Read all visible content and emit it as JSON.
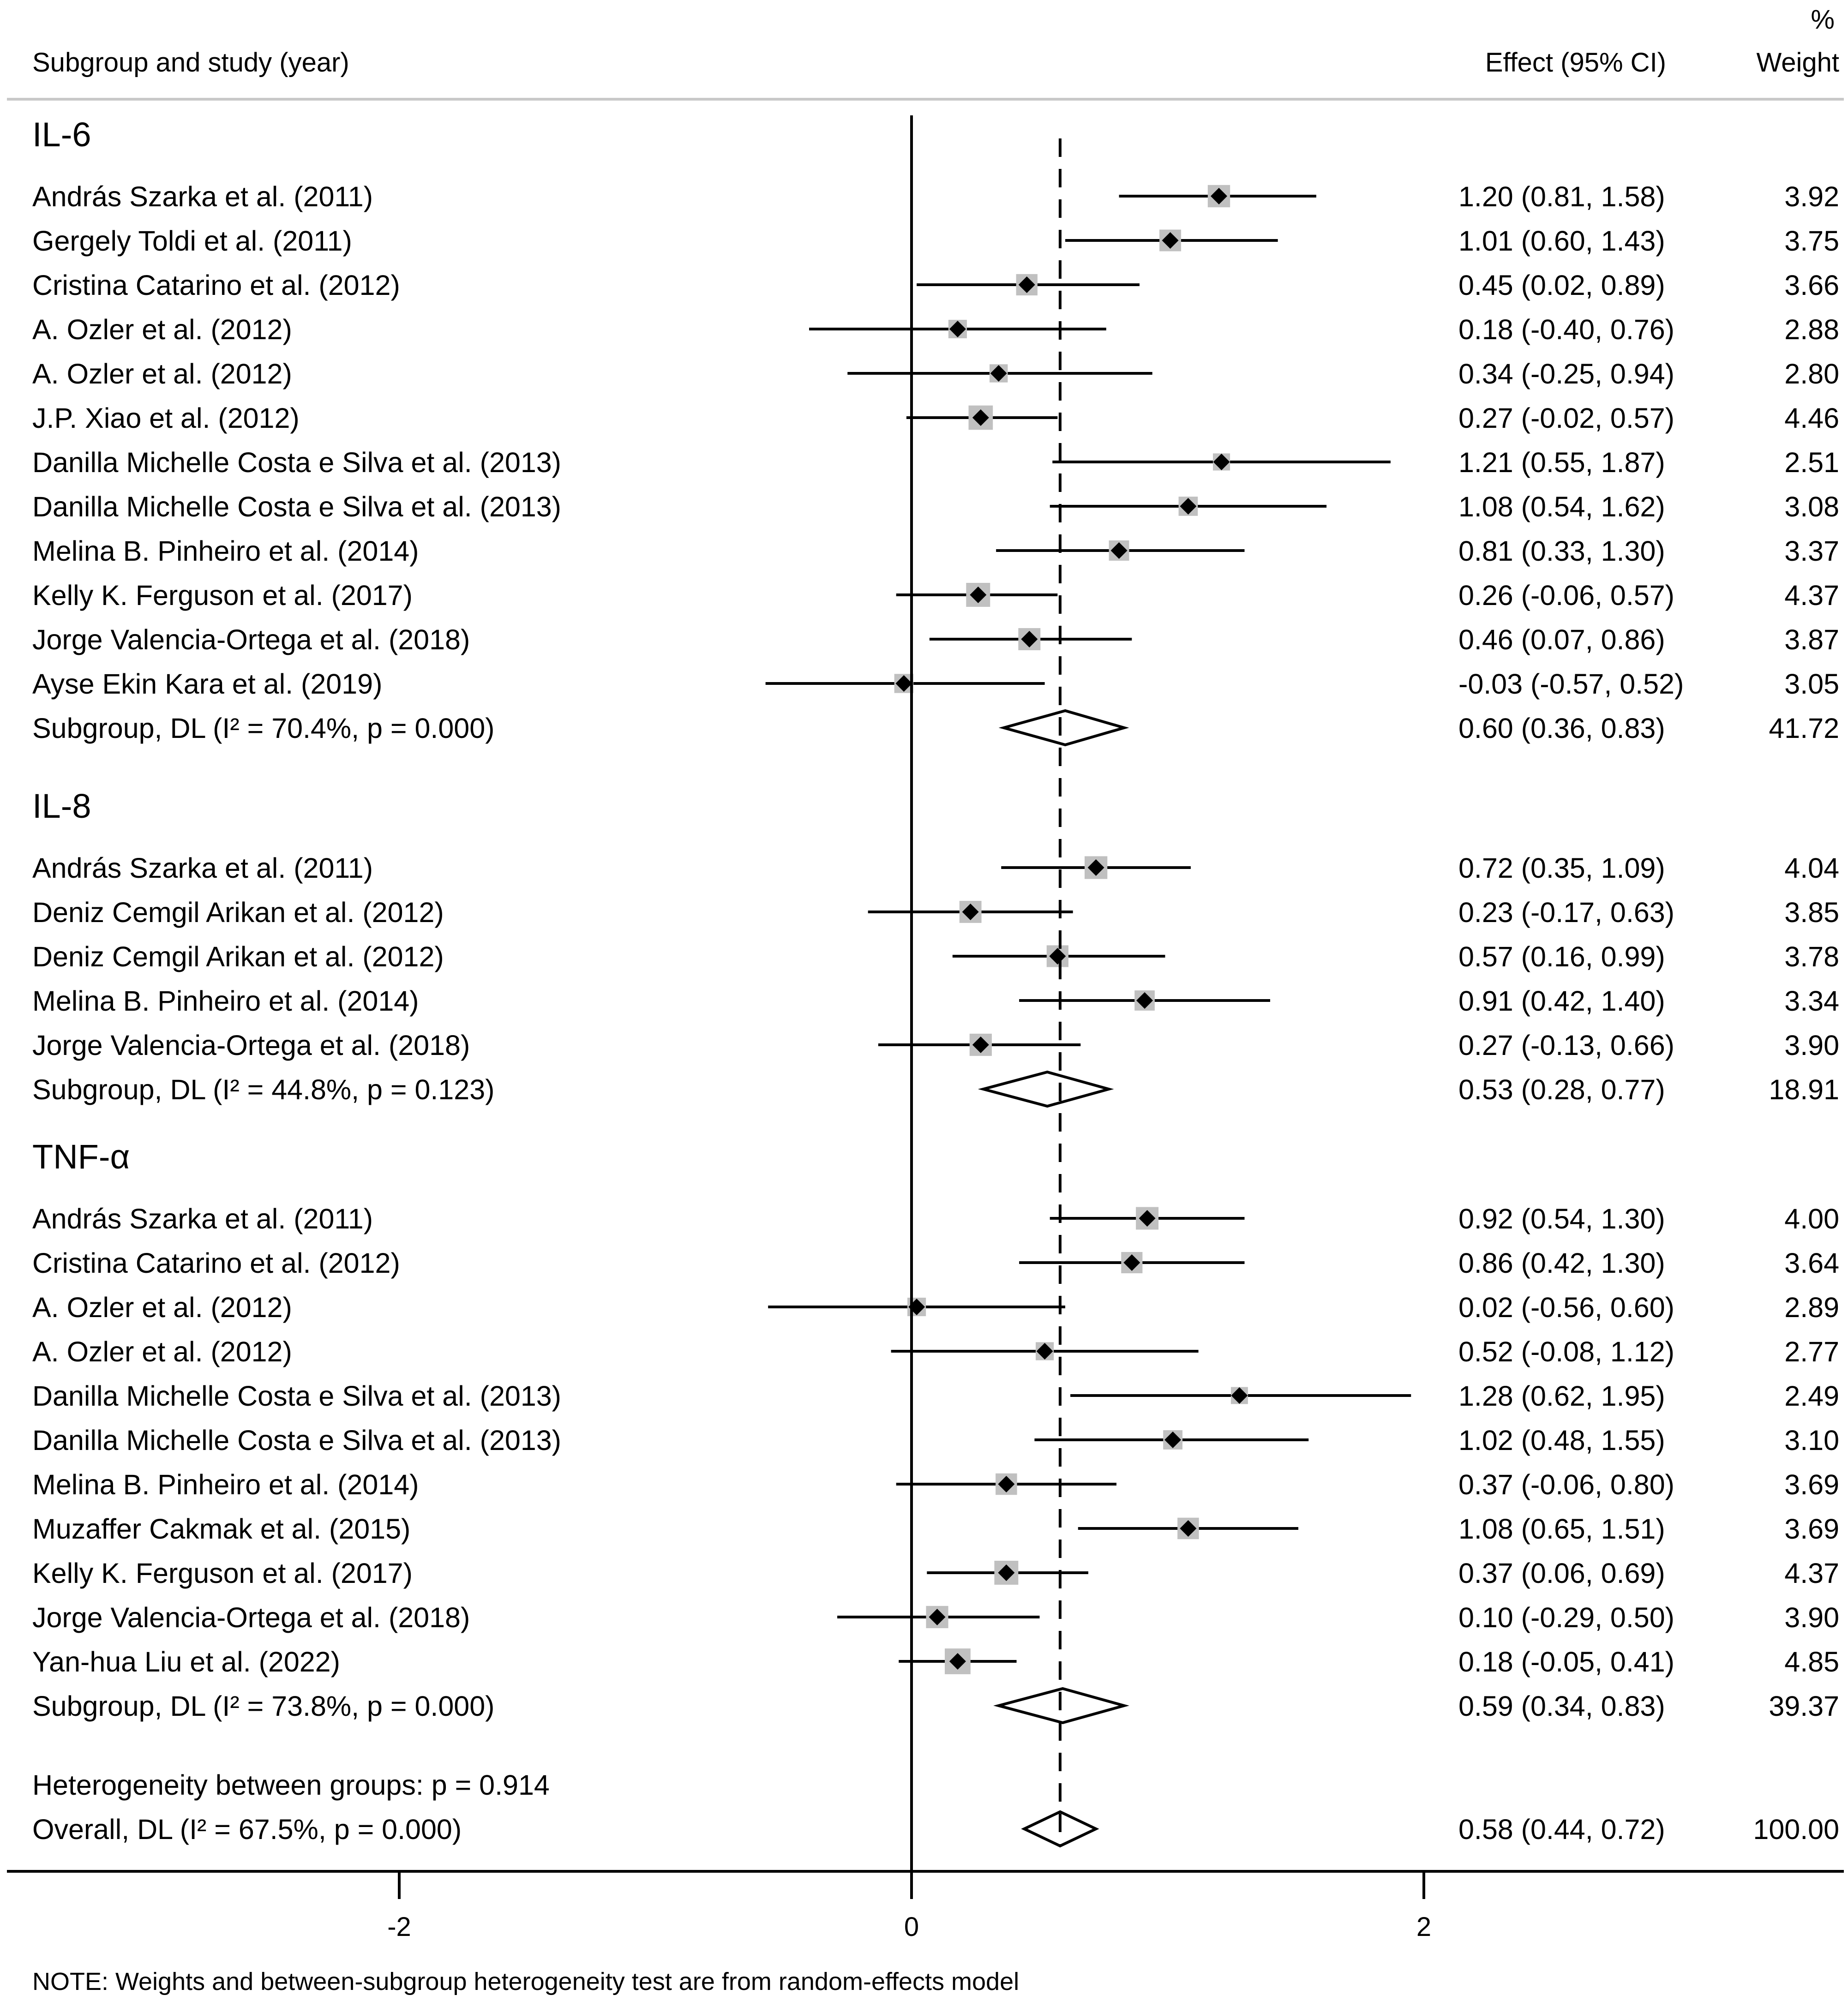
{
  "chart_data": {
    "type": "forest",
    "header": {
      "study_col": "Subgroup and study (year)",
      "effect_col": "Effect (95% CI)",
      "weight_pct": "%",
      "weight_col": "Weight"
    },
    "reference_line": 0,
    "overall_line": 0.58,
    "x_ticks": [
      -2,
      0,
      2
    ],
    "x_tick_labels": [
      "-2",
      "0",
      "2"
    ],
    "groups": [
      {
        "name": "IL-6",
        "studies": [
          {
            "label": "András Szarka et al. (2011)",
            "est": 1.2,
            "lo": 0.81,
            "hi": 1.58,
            "effect": "1.20 (0.81, 1.58)",
            "weight": "3.92"
          },
          {
            "label": "Gergely Toldi et al. (2011)",
            "est": 1.01,
            "lo": 0.6,
            "hi": 1.43,
            "effect": "1.01 (0.60, 1.43)",
            "weight": "3.75"
          },
          {
            "label": "Cristina Catarino et al. (2012)",
            "est": 0.45,
            "lo": 0.02,
            "hi": 0.89,
            "effect": "0.45 (0.02, 0.89)",
            "weight": "3.66"
          },
          {
            "label": "A. Ozler et al. (2012)",
            "est": 0.18,
            "lo": -0.4,
            "hi": 0.76,
            "effect": "0.18 (-0.40, 0.76)",
            "weight": "2.88"
          },
          {
            "label": "A. Ozler et al. (2012)",
            "est": 0.34,
            "lo": -0.25,
            "hi": 0.94,
            "effect": "0.34 (-0.25, 0.94)",
            "weight": "2.80"
          },
          {
            "label": "J.P. Xiao et al. (2012)",
            "est": 0.27,
            "lo": -0.02,
            "hi": 0.57,
            "effect": "0.27 (-0.02, 0.57)",
            "weight": "4.46"
          },
          {
            "label": "Danilla Michelle Costa e Silva et al. (2013)",
            "est": 1.21,
            "lo": 0.55,
            "hi": 1.87,
            "effect": "1.21 (0.55, 1.87)",
            "weight": "2.51"
          },
          {
            "label": "Danilla Michelle Costa e Silva et al. (2013)",
            "est": 1.08,
            "lo": 0.54,
            "hi": 1.62,
            "effect": "1.08 (0.54, 1.62)",
            "weight": "3.08"
          },
          {
            "label": "Melina B. Pinheiro et al. (2014)",
            "est": 0.81,
            "lo": 0.33,
            "hi": 1.3,
            "effect": "0.81 (0.33, 1.30)",
            "weight": "3.37"
          },
          {
            "label": "Kelly K. Ferguson et al. (2017)",
            "est": 0.26,
            "lo": -0.06,
            "hi": 0.57,
            "effect": "0.26 (-0.06, 0.57)",
            "weight": "4.37"
          },
          {
            "label": "Jorge Valencia-Ortega et al. (2018)",
            "est": 0.46,
            "lo": 0.07,
            "hi": 0.86,
            "effect": "0.46 (0.07, 0.86)",
            "weight": "3.87"
          },
          {
            "label": "Ayse Ekin Kara et al. (2019)",
            "est": -0.03,
            "lo": -0.57,
            "hi": 0.52,
            "effect": "-0.03 (-0.57, 0.52)",
            "weight": "3.05"
          }
        ],
        "subgroup": {
          "label": "Subgroup, DL (I² = 70.4%, p = 0.000)",
          "est": 0.6,
          "lo": 0.36,
          "hi": 0.83,
          "effect": "0.60 (0.36, 0.83)",
          "weight": "41.72"
        }
      },
      {
        "name": "IL-8",
        "studies": [
          {
            "label": "András Szarka et al. (2011)",
            "est": 0.72,
            "lo": 0.35,
            "hi": 1.09,
            "effect": "0.72 (0.35, 1.09)",
            "weight": "4.04"
          },
          {
            "label": "Deniz Cemgil Arikan et al. (2012)",
            "est": 0.23,
            "lo": -0.17,
            "hi": 0.63,
            "effect": "0.23 (-0.17, 0.63)",
            "weight": "3.85"
          },
          {
            "label": "Deniz Cemgil Arikan et al. (2012)",
            "est": 0.57,
            "lo": 0.16,
            "hi": 0.99,
            "effect": "0.57 (0.16, 0.99)",
            "weight": "3.78"
          },
          {
            "label": "Melina B. Pinheiro et al. (2014)",
            "est": 0.91,
            "lo": 0.42,
            "hi": 1.4,
            "effect": "0.91 (0.42, 1.40)",
            "weight": "3.34"
          },
          {
            "label": "Jorge Valencia-Ortega et al. (2018)",
            "est": 0.27,
            "lo": -0.13,
            "hi": 0.66,
            "effect": "0.27 (-0.13, 0.66)",
            "weight": "3.90"
          }
        ],
        "subgroup": {
          "label": "Subgroup, DL (I² = 44.8%, p = 0.123)",
          "est": 0.53,
          "lo": 0.28,
          "hi": 0.77,
          "effect": "0.53 (0.28, 0.77)",
          "weight": "18.91"
        }
      },
      {
        "name": "TNF-α",
        "studies": [
          {
            "label": "András Szarka et al. (2011)",
            "est": 0.92,
            "lo": 0.54,
            "hi": 1.3,
            "effect": "0.92 (0.54, 1.30)",
            "weight": "4.00"
          },
          {
            "label": "Cristina Catarino et al. (2012)",
            "est": 0.86,
            "lo": 0.42,
            "hi": 1.3,
            "effect": "0.86 (0.42, 1.30)",
            "weight": "3.64"
          },
          {
            "label": "A. Ozler et al. (2012)",
            "est": 0.02,
            "lo": -0.56,
            "hi": 0.6,
            "effect": "0.02 (-0.56, 0.60)",
            "weight": "2.89"
          },
          {
            "label": "A. Ozler et al. (2012)",
            "est": 0.52,
            "lo": -0.08,
            "hi": 1.12,
            "effect": "0.52 (-0.08, 1.12)",
            "weight": "2.77"
          },
          {
            "label": "Danilla Michelle Costa e Silva et al. (2013)",
            "est": 1.28,
            "lo": 0.62,
            "hi": 1.95,
            "effect": "1.28 (0.62, 1.95)",
            "weight": "2.49"
          },
          {
            "label": "Danilla Michelle Costa e Silva et al. (2013)",
            "est": 1.02,
            "lo": 0.48,
            "hi": 1.55,
            "effect": "1.02 (0.48, 1.55)",
            "weight": "3.10"
          },
          {
            "label": "Melina B. Pinheiro et al. (2014)",
            "est": 0.37,
            "lo": -0.06,
            "hi": 0.8,
            "effect": "0.37 (-0.06, 0.80)",
            "weight": "3.69"
          },
          {
            "label": "Muzaffer Cakmak et al. (2015)",
            "est": 1.08,
            "lo": 0.65,
            "hi": 1.51,
            "effect": "1.08 (0.65, 1.51)",
            "weight": "3.69"
          },
          {
            "label": "Kelly K. Ferguson et al. (2017)",
            "est": 0.37,
            "lo": 0.06,
            "hi": 0.69,
            "effect": "0.37 (0.06, 0.69)",
            "weight": "4.37"
          },
          {
            "label": "Jorge Valencia-Ortega et al. (2018)",
            "est": 0.1,
            "lo": -0.29,
            "hi": 0.5,
            "effect": "0.10 (-0.29, 0.50)",
            "weight": "3.90"
          },
          {
            "label": "Yan-hua Liu et al. (2022)",
            "est": 0.18,
            "lo": -0.05,
            "hi": 0.41,
            "effect": "0.18 (-0.05, 0.41)",
            "weight": "4.85"
          }
        ],
        "subgroup": {
          "label": "Subgroup, DL (I² = 73.8%, p = 0.000)",
          "est": 0.59,
          "lo": 0.34,
          "hi": 0.83,
          "effect": "0.59 (0.34, 0.83)",
          "weight": "39.37"
        }
      }
    ],
    "heterogeneity_between": "Heterogeneity between groups: p = 0.914",
    "overall": {
      "label": "Overall, DL (I² = 67.5%, p = 0.000)",
      "est": 0.58,
      "lo": 0.44,
      "hi": 0.72,
      "effect": "0.58 (0.44, 0.72)",
      "weight": "100.00"
    },
    "note": "NOTE: Weights and between-subgroup heterogeneity test are from random-effects model",
    "colors": {
      "ink": "#000000",
      "weight_box": "#c0c0c0",
      "rule": "#c8c8c8",
      "background": "#ffffff"
    }
  }
}
